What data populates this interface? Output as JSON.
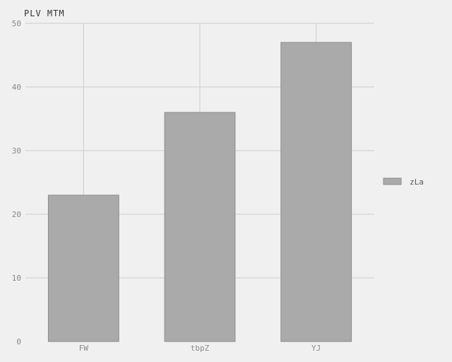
{
  "chart_data": {
    "type": "bar",
    "title": "PLV MTM",
    "xlabel": "",
    "ylabel": "",
    "categories": [
      "FW",
      "tbpZ",
      "YJ"
    ],
    "series": [
      {
        "name": "zLa",
        "values": [
          23,
          36,
          47
        ]
      }
    ],
    "ylim": [
      0,
      50
    ],
    "yticks": [
      "0",
      "10",
      "20",
      "30",
      "40",
      "50"
    ],
    "grid": true,
    "legend": "right",
    "colors": {
      "bar_fill": "#aaaaaa",
      "bar_stroke": "#8c8c8c",
      "grid": "#cccccc",
      "background": "#f0f0f0"
    }
  }
}
